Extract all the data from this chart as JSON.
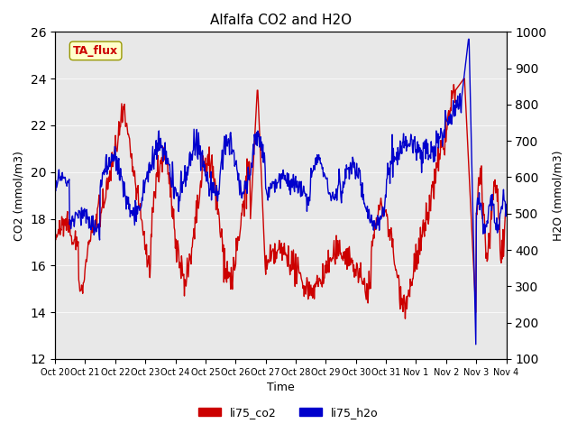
{
  "title": "Alfalfa CO2 and H2O",
  "xlabel": "Time",
  "ylabel_left": "CO2 (mmol/m3)",
  "ylabel_right": "H2O (mmol/m3)",
  "ylim_left": [
    12,
    26
  ],
  "ylim_right": [
    100,
    1000
  ],
  "yticks_left": [
    12,
    14,
    16,
    18,
    20,
    22,
    24,
    26
  ],
  "yticks_right": [
    100,
    200,
    300,
    400,
    500,
    600,
    700,
    800,
    900,
    1000
  ],
  "bg_color": "#e8e8e8",
  "fig_color": "#ffffff",
  "line_co2_color": "#cc0000",
  "line_h2o_color": "#0000cc",
  "legend_label_co2": "li75_co2",
  "legend_label_h2o": "li75_h2o",
  "annotation_text": "TA_flux",
  "annotation_color": "#cc0000",
  "annotation_bg": "#ffffcc",
  "x_tick_labels": [
    "Oct 20",
    "Oct 21",
    "Oct 22",
    "Oct 23",
    "Oct 24",
    "Oct 25",
    "Oct 26",
    "Oct 27",
    "Oct 28",
    "Oct 29",
    "Oct 30",
    "Oct 31",
    "Nov 1",
    "Nov 2",
    "Nov 3",
    "Nov 4"
  ],
  "n_points": 800
}
